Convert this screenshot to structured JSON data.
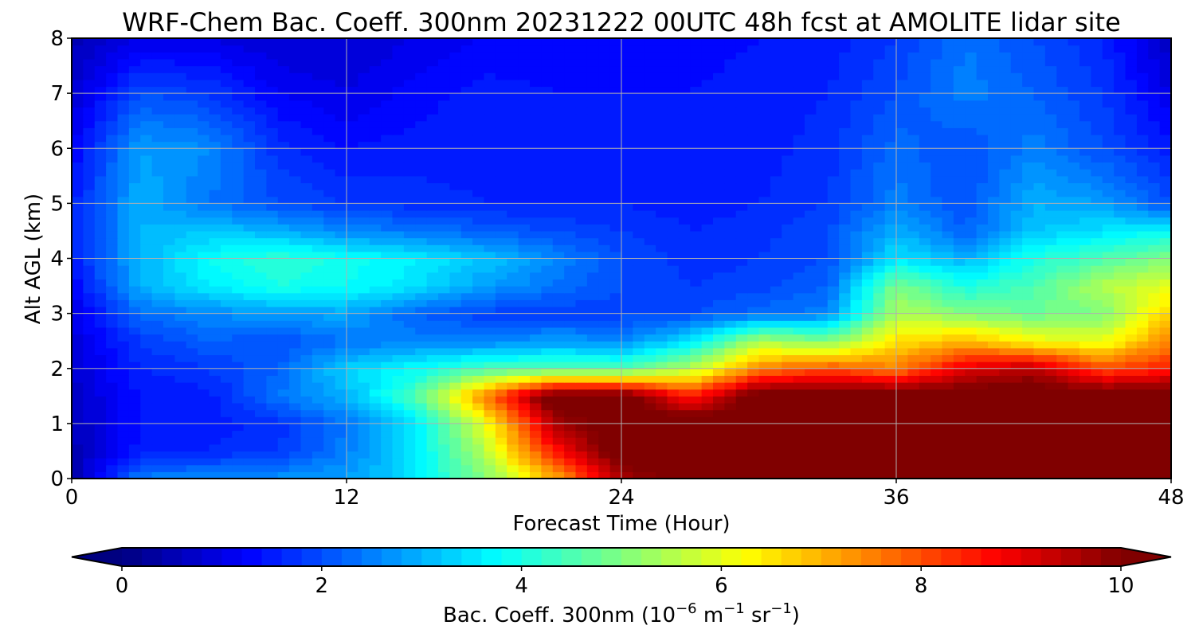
{
  "chart_data": {
    "type": "heatmap",
    "title": "WRF-Chem Bac. Coeff. 300nm  20231222 00UTC 48h fcst at AMOLITE lidar site",
    "xlabel": "Forecast Time (Hour)",
    "ylabel": "Alt AGL (km)",
    "xlim": [
      0,
      48
    ],
    "ylim": [
      0,
      8
    ],
    "xticks": [
      0,
      12,
      24,
      36,
      48
    ],
    "yticks": [
      0,
      1,
      2,
      3,
      4,
      5,
      6,
      7,
      8
    ],
    "grid": true,
    "colormap": "jet",
    "colorbar": {
      "label_main": "Bac. Coeff. 300nm  (10",
      "label_exp1": "−6",
      "label_mid": " m",
      "label_exp2": "−1",
      "label_mid2": " sr",
      "label_exp3": "−1",
      "label_end": ")",
      "range": [
        0,
        10
      ],
      "ticks": [
        0,
        2,
        4,
        6,
        8,
        10
      ],
      "extend": "both",
      "orientation": "horizontal"
    },
    "x_hours": [
      0,
      3,
      6,
      9,
      12,
      15,
      18,
      21,
      24,
      27,
      30,
      33,
      36,
      39,
      42,
      45,
      48
    ],
    "y_km": [
      0,
      0.5,
      1,
      1.5,
      2,
      2.5,
      3,
      3.5,
      4,
      4.5,
      5,
      6,
      7,
      8
    ],
    "values": [
      [
        0.4,
        2.5,
        2.6,
        2.7,
        2.8,
        3.5,
        5.0,
        7.0,
        9.5,
        10.5,
        10.5,
        10.5,
        10.5,
        10.5,
        10.5,
        10.5,
        10.5
      ],
      [
        0.5,
        1.5,
        1.6,
        1.8,
        2.5,
        3.5,
        5.5,
        8.5,
        10.5,
        10.5,
        10.5,
        10.5,
        10.5,
        10.5,
        10.5,
        10.5,
        10.5
      ],
      [
        0.6,
        1.4,
        1.5,
        1.7,
        2.4,
        3.5,
        6.0,
        9.5,
        10.5,
        10.5,
        10.5,
        10.5,
        10.5,
        10.5,
        10.5,
        10.5,
        10.5
      ],
      [
        0.7,
        1.4,
        1.5,
        2.4,
        3.0,
        4.5,
        7.5,
        10.5,
        10.5,
        8.5,
        10.5,
        10.5,
        10.5,
        10.5,
        10.5,
        10.5,
        10.5
      ],
      [
        0.8,
        1.6,
        1.8,
        2.2,
        3.3,
        3.8,
        4.5,
        4.5,
        4.5,
        5.5,
        7.5,
        8.0,
        7.5,
        9.0,
        9.5,
        8.0,
        8.5
      ],
      [
        0.9,
        1.8,
        2.2,
        2.0,
        2.4,
        2.5,
        2.5,
        2.8,
        2.6,
        3.5,
        5.5,
        5.0,
        6.5,
        7.0,
        6.2,
        6.0,
        7.5
      ],
      [
        1.0,
        2.3,
        2.6,
        2.8,
        2.9,
        2.2,
        1.9,
        1.8,
        1.9,
        2.0,
        2.3,
        2.5,
        5.5,
        5.0,
        4.8,
        5.0,
        6.8
      ],
      [
        1.2,
        3.0,
        3.6,
        4.0,
        3.8,
        3.5,
        2.8,
        2.4,
        2.0,
        1.8,
        1.9,
        2.2,
        5.0,
        4.0,
        4.5,
        5.5,
        6.0
      ],
      [
        1.5,
        3.0,
        3.8,
        4.2,
        3.9,
        3.6,
        3.2,
        2.6,
        2.0,
        1.7,
        1.8,
        2.0,
        3.5,
        3.0,
        4.0,
        4.5,
        5.0
      ],
      [
        1.5,
        3.0,
        3.2,
        3.0,
        2.6,
        2.4,
        2.2,
        2.0,
        1.8,
        1.6,
        1.7,
        2.0,
        3.0,
        2.2,
        3.2,
        3.5,
        3.8
      ],
      [
        1.5,
        3.0,
        2.4,
        2.0,
        1.8,
        1.7,
        1.6,
        1.6,
        1.6,
        1.5,
        1.6,
        1.8,
        2.5,
        2.0,
        3.0,
        2.8,
        2.0
      ],
      [
        1.2,
        2.8,
        2.6,
        1.7,
        1.4,
        1.5,
        1.5,
        1.4,
        1.5,
        1.5,
        1.5,
        1.7,
        2.3,
        2.0,
        2.5,
        2.0,
        1.5
      ],
      [
        0.8,
        2.0,
        1.8,
        1.2,
        1.0,
        1.3,
        1.5,
        1.4,
        1.4,
        1.4,
        1.5,
        1.6,
        2.0,
        2.5,
        2.2,
        1.8,
        1.0
      ],
      [
        0.5,
        1.0,
        1.0,
        0.8,
        0.8,
        1.0,
        1.2,
        1.3,
        1.3,
        1.3,
        1.4,
        1.5,
        1.8,
        2.4,
        2.0,
        1.6,
        0.6
      ]
    ]
  }
}
